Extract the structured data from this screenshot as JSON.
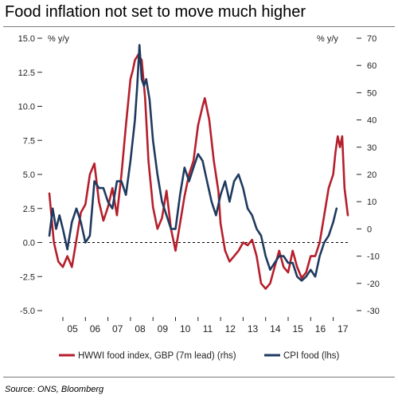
{
  "title": "Food inflation not set to move much higher",
  "source": "Source: ONS, Bloomberg",
  "colors": {
    "hwwi": "#b51f2b",
    "cpi": "#1f3a5f",
    "zero_line": "#000000",
    "axis_text": "#222222"
  },
  "chart_data": {
    "type": "line",
    "title": "Food inflation not set to move much higher",
    "left_axis": {
      "label": "% y/y",
      "ylim": [
        -5,
        15
      ],
      "ticks": [
        "15.0",
        "12.5",
        "10.0",
        "7.5",
        "5.0",
        "2.5",
        "0.0",
        "-2.5",
        "-5.0"
      ]
    },
    "right_axis": {
      "label": "% y/y",
      "ylim": [
        -30,
        70
      ],
      "ticks": [
        "70",
        "60",
        "50",
        "40",
        "30",
        "20",
        "10",
        "0",
        "-10",
        "-20",
        "-30"
      ]
    },
    "x_axis": {
      "range": [
        2004.4,
        2017.65
      ],
      "tick_labels": [
        "05",
        "06",
        "07",
        "08",
        "09",
        "10",
        "11",
        "12",
        "13",
        "14",
        "15",
        "16",
        "17"
      ]
    },
    "zero_line": "dashed",
    "legend_position": "bottom",
    "series": [
      {
        "name": "HWWI food index, GBP (7m lead) (rhs)",
        "axis": "right",
        "x": [
          2004.4,
          2004.6,
          2004.8,
          2005.0,
          2005.2,
          2005.4,
          2005.6,
          2005.8,
          2006.0,
          2006.2,
          2006.4,
          2006.6,
          2006.8,
          2007.0,
          2007.2,
          2007.4,
          2007.6,
          2007.8,
          2008.0,
          2008.1,
          2008.2,
          2008.35,
          2008.5,
          2008.65,
          2008.8,
          2009.0,
          2009.2,
          2009.4,
          2009.6,
          2009.8,
          2010.0,
          2010.2,
          2010.4,
          2010.6,
          2010.8,
          2011.0,
          2011.2,
          2011.3,
          2011.5,
          2011.7,
          2011.9,
          2012.0,
          2012.2,
          2012.4,
          2012.6,
          2012.8,
          2013.0,
          2013.2,
          2013.4,
          2013.6,
          2013.8,
          2014.0,
          2014.2,
          2014.4,
          2014.6,
          2014.8,
          2015.0,
          2015.2,
          2015.4,
          2015.6,
          2015.8,
          2016.0,
          2016.2,
          2016.4,
          2016.6,
          2016.8,
          2017.0,
          2017.1,
          2017.2,
          2017.3,
          2017.4,
          2017.5,
          2017.65
        ],
        "values": [
          13,
          -5,
          -12,
          -14,
          -10,
          -14,
          -4,
          6,
          9,
          20,
          24,
          10,
          3,
          8,
          15,
          5,
          20,
          38,
          55,
          58,
          62,
          64,
          62,
          48,
          25,
          8,
          0,
          4,
          14,
          0,
          -8,
          2,
          12,
          20,
          25,
          38,
          45,
          48,
          40,
          25,
          14,
          2,
          -8,
          -12,
          -10,
          -8,
          -5,
          -6,
          -4,
          -10,
          -20,
          -22,
          -20,
          -14,
          -8,
          -14,
          -16,
          -8,
          -14,
          -18,
          -16,
          -10,
          -10,
          -5,
          5,
          15,
          20,
          28,
          34,
          30,
          34,
          15,
          5
        ]
      },
      {
        "name": "CPI food (lhs)",
        "axis": "left",
        "x": [
          2004.4,
          2004.55,
          2004.7,
          2004.85,
          2005.0,
          2005.2,
          2005.4,
          2005.6,
          2005.8,
          2006.0,
          2006.2,
          2006.4,
          2006.6,
          2006.8,
          2007.0,
          2007.2,
          2007.4,
          2007.6,
          2007.8,
          2008.0,
          2008.1,
          2008.2,
          2008.3,
          2008.4,
          2008.5,
          2008.6,
          2008.7,
          2008.85,
          2009.0,
          2009.2,
          2009.4,
          2009.6,
          2009.8,
          2010.0,
          2010.2,
          2010.4,
          2010.6,
          2010.8,
          2011.0,
          2011.2,
          2011.4,
          2011.6,
          2011.8,
          2012.0,
          2012.2,
          2012.4,
          2012.6,
          2012.8,
          2013.0,
          2013.2,
          2013.4,
          2013.6,
          2013.8,
          2014.0,
          2014.2,
          2014.4,
          2014.6,
          2014.8,
          2015.0,
          2015.2,
          2015.4,
          2015.6,
          2015.8,
          2016.0,
          2016.2,
          2016.4,
          2016.6,
          2016.8,
          2017.0,
          2017.15
        ],
        "values": [
          0.5,
          2.5,
          1.0,
          2.0,
          1.0,
          -0.5,
          1.5,
          2.5,
          1.5,
          0.0,
          0.5,
          4.5,
          4.0,
          4.0,
          3.0,
          2.5,
          4.5,
          4.5,
          3.5,
          6.0,
          7.5,
          9.0,
          11.5,
          14.5,
          12.0,
          11.5,
          12.0,
          10.5,
          7.5,
          5.0,
          3.0,
          2.0,
          1.0,
          1.0,
          3.5,
          5.5,
          4.5,
          5.5,
          6.5,
          6.0,
          4.5,
          3.0,
          2.0,
          3.5,
          4.5,
          3.0,
          4.5,
          5.0,
          4.0,
          2.5,
          2.0,
          1.0,
          0.5,
          -1.0,
          -2.0,
          -1.5,
          -1.0,
          -1.0,
          -1.5,
          -1.5,
          -2.5,
          -2.8,
          -2.5,
          -2.0,
          -2.5,
          -1.0,
          0.0,
          0.5,
          1.5,
          2.5
        ]
      }
    ]
  }
}
